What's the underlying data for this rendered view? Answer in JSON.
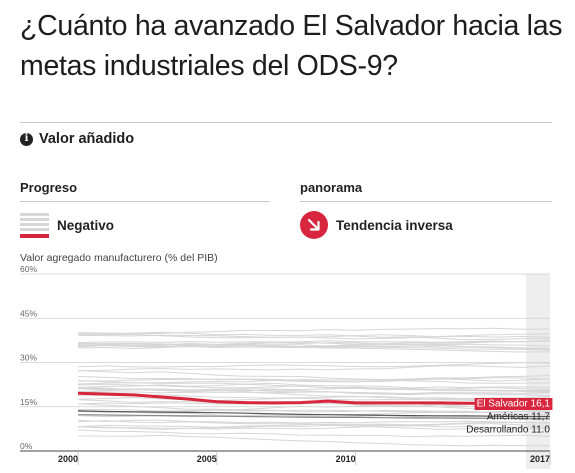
{
  "title": {
    "line1": "¿Cuánto ha avanzado El Salvador hacia las",
    "line2": "metas industriales del ODS-9?"
  },
  "section": {
    "label": "Valor añadido",
    "icon": "info-icon"
  },
  "progress": {
    "header": "Progreso",
    "status": "Negativo",
    "icon": "negative-progress-swatch"
  },
  "outlook": {
    "header": "panorama",
    "status": "Tendencia inversa",
    "icon": "down-right-arrow-icon"
  },
  "colors": {
    "accent": "#d7263d",
    "background_lines": "#d6d6d6",
    "americas": "#555555",
    "developing": "#888888"
  },
  "chart_data": {
    "type": "line",
    "ylabel": "Valor agregado manufacturero (% del PIB)",
    "ylim": [
      0,
      60
    ],
    "xlim": [
      2000,
      2017
    ],
    "yticks": [
      0,
      15,
      30,
      45,
      60
    ],
    "ytick_labels": [
      "0%",
      "15%",
      "30%",
      "45%",
      "60%"
    ],
    "xticks": [
      2000,
      2005,
      2010,
      2017
    ],
    "xtick_labels": [
      "2000",
      "2005",
      "2010",
      "2017"
    ],
    "grid": true,
    "highlight_year": 2017,
    "x": [
      2000,
      2001,
      2002,
      2003,
      2004,
      2005,
      2006,
      2007,
      2008,
      2009,
      2010,
      2011,
      2012,
      2013,
      2014,
      2015,
      2016,
      2017
    ],
    "series": [
      {
        "name": "El Salvador",
        "label": "El Salvador 16,1",
        "values": [
          19.6,
          19.3,
          19.0,
          18.3,
          17.6,
          16.7,
          16.4,
          16.3,
          16.4,
          16.9,
          16.3,
          16.3,
          16.3,
          16.3,
          16.2,
          16.1,
          16.1,
          16.1
        ]
      },
      {
        "name": "Américas",
        "label": "Américas 11,7",
        "values": [
          13.6,
          13.4,
          13.3,
          13.2,
          13.1,
          13.0,
          12.8,
          12.6,
          12.4,
          12.3,
          12.2,
          12.1,
          12.0,
          11.9,
          11.9,
          11.8,
          11.7,
          11.7
        ]
      },
      {
        "name": "Desarrollando",
        "label": "Desarrollando 11.0",
        "values": [
          12.3,
          12.2,
          12.1,
          12.0,
          11.9,
          11.8,
          11.7,
          11.6,
          11.5,
          11.4,
          11.4,
          11.3,
          11.2,
          11.2,
          11.1,
          11.1,
          11.0,
          11.0
        ]
      }
    ]
  }
}
